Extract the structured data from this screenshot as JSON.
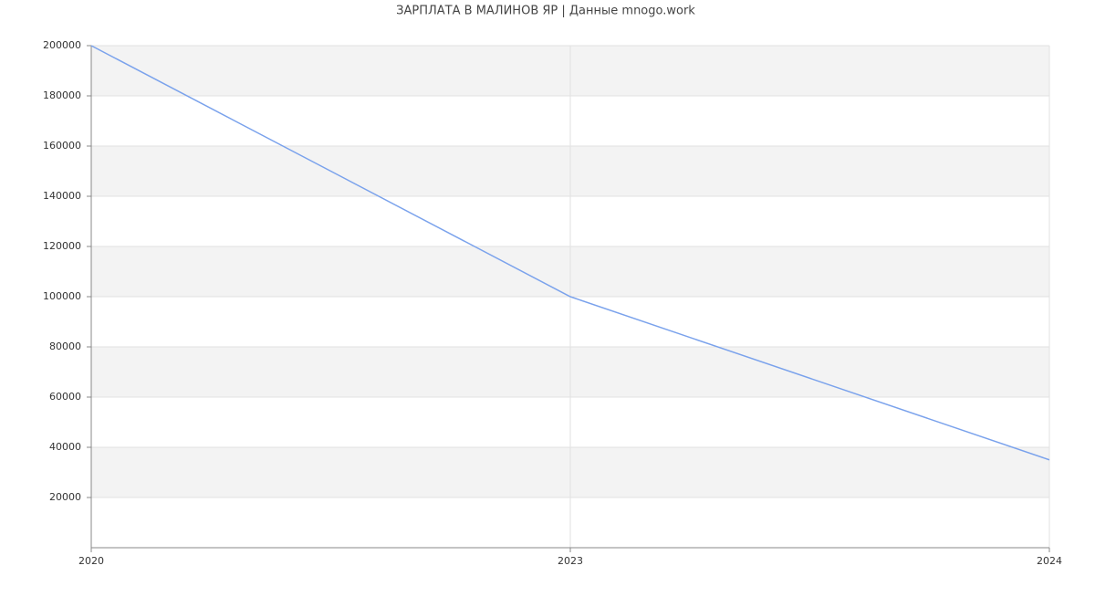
{
  "chart_data": {
    "type": "line",
    "title": "ЗАРПЛАТА В МАЛИНОВ ЯР | Данные mnogo.work",
    "categories": [
      "2020",
      "2023",
      "2024"
    ],
    "values": [
      200000,
      100000,
      35000
    ],
    "color": "#7aa2ec",
    "ylim": [
      0,
      200000
    ],
    "yticks": [
      20000,
      40000,
      60000,
      80000,
      100000,
      120000,
      140000,
      160000,
      180000,
      200000
    ],
    "grid": true
  }
}
